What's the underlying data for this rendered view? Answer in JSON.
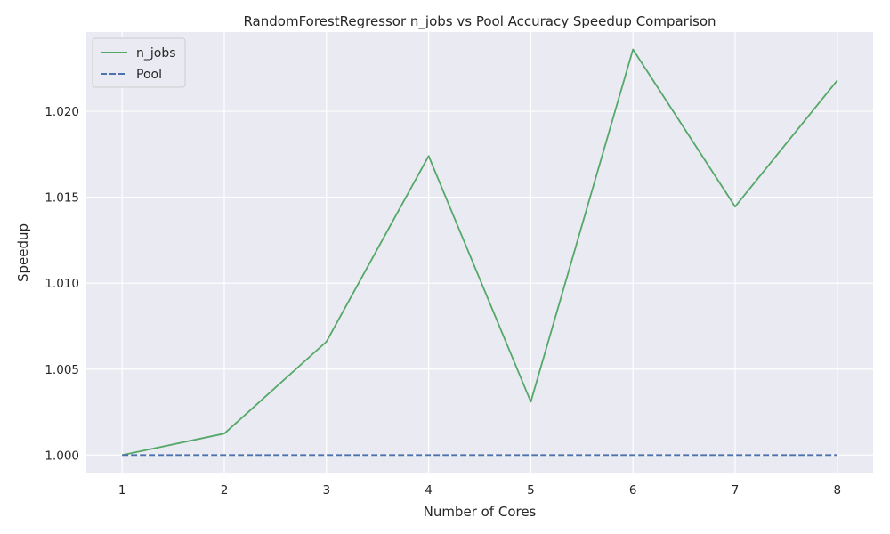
{
  "chart_data": {
    "type": "line",
    "title": "RandomForestRegressor n_jobs vs Pool Accuracy Speedup Comparison",
    "xlabel": "Number of Cores",
    "ylabel": "Speedup",
    "x": [
      1,
      2,
      3,
      4,
      5,
      6,
      7,
      8
    ],
    "xticks": [
      "1",
      "2",
      "3",
      "4",
      "5",
      "6",
      "7",
      "8"
    ],
    "yticks": [
      "1.000",
      "1.005",
      "1.010",
      "1.015",
      "1.020"
    ],
    "ytick_values": [
      1.0,
      1.005,
      1.01,
      1.015,
      1.02
    ],
    "xlim": [
      0.65,
      8.35
    ],
    "ylim": [
      0.99893,
      1.02461
    ],
    "grid": true,
    "legend_position": "top-left",
    "series": [
      {
        "name": "n_jobs",
        "color": "#55a868",
        "style": "solid",
        "values": [
          1.0,
          1.00125,
          1.0066,
          1.0174,
          1.0031,
          1.0236,
          1.01445,
          1.0218
        ]
      },
      {
        "name": "Pool",
        "color": "#4c72b0",
        "style": "dashed",
        "values": [
          1.0,
          1.0,
          1.0,
          1.0,
          1.0,
          1.0,
          1.0,
          1.0
        ]
      }
    ]
  }
}
